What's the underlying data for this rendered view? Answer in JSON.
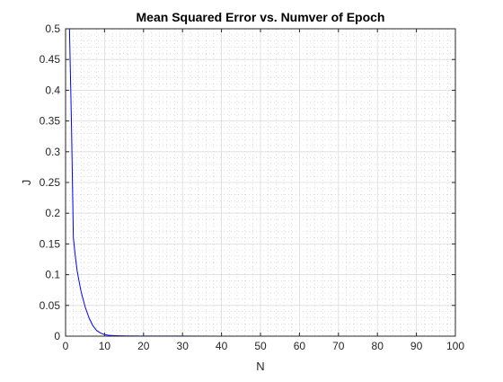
{
  "chart_data": {
    "type": "line",
    "title": "Mean Squared Error vs. Numver of Epoch",
    "xlabel": "N",
    "ylabel": "J",
    "xlim": [
      0,
      100
    ],
    "ylim": [
      0,
      0.5
    ],
    "xticks": [
      0,
      10,
      20,
      30,
      40,
      50,
      60,
      70,
      80,
      90,
      100
    ],
    "xtick_labels": [
      "0",
      "10",
      "20",
      "30",
      "40",
      "50",
      "60",
      "70",
      "80",
      "90",
      "100"
    ],
    "yticks": [
      0,
      0.05,
      0.1,
      0.15,
      0.2,
      0.25,
      0.3,
      0.35,
      0.4,
      0.45,
      0.5
    ],
    "ytick_labels": [
      "0",
      "0.05",
      "0.1",
      "0.15",
      "0.2",
      "0.25",
      "0.3",
      "0.35",
      "0.4",
      "0.45",
      "0.5"
    ],
    "grid": true,
    "minor_grid": true,
    "series": [
      {
        "color": "#0000ff",
        "x": [
          1,
          1.5,
          2,
          2.5,
          3,
          3.5,
          4,
          5,
          6,
          7,
          8,
          9,
          10,
          11,
          12,
          14,
          16,
          20,
          30,
          40,
          50,
          60,
          70,
          80,
          90,
          100
        ],
        "y": [
          0.5,
          0.35,
          0.16,
          0.13,
          0.105,
          0.088,
          0.072,
          0.048,
          0.03,
          0.017,
          0.009,
          0.005,
          0.0025,
          0.0015,
          0.001,
          0.0006,
          0.0004,
          0.0002,
          0.0001,
          0.0,
          0.0,
          0.0,
          0.0,
          0.0,
          0.0,
          0.0
        ]
      }
    ]
  }
}
